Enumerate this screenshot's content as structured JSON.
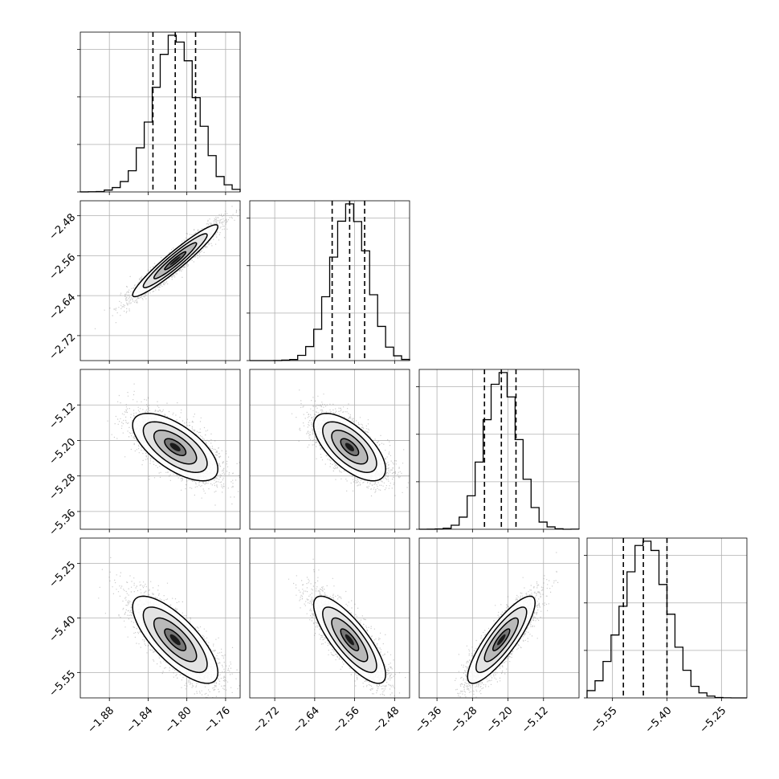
{
  "chart_data": {
    "type": "corner",
    "grid": true,
    "colors": {
      "scatter": "#6e6e6e",
      "contour": "#000000",
      "hist": "#000000",
      "grid": "#b0b0b0"
    },
    "parameters": [
      {
        "mean": -1.812,
        "sd": 0.022,
        "quantiles": [
          -1.835,
          -1.812,
          -1.791
        ],
        "range": [
          -1.91,
          -1.745
        ],
        "ticks": [
          "-1.88",
          "-1.84",
          "-1.80",
          "-1.76"
        ]
      },
      {
        "mean": -2.57,
        "sd": 0.036,
        "quantiles": [
          -2.605,
          -2.57,
          -2.54
        ],
        "range": [
          -2.77,
          -2.45
        ],
        "ticks": [
          "-2.72",
          "-2.64",
          "-2.56",
          "-2.48"
        ]
      },
      {
        "mean": -5.215,
        "sd": 0.038,
        "quantiles": [
          -5.253,
          -5.215,
          -5.182
        ],
        "range": [
          -5.4,
          -5.04
        ],
        "ticks": [
          "-5.36",
          "-5.28",
          "-5.20",
          "-5.12"
        ]
      },
      {
        "mean": -5.46,
        "sd": 0.06,
        "quantiles": [
          -5.52,
          -5.465,
          -5.4
        ],
        "range": [
          -5.62,
          -5.18
        ],
        "ticks": [
          "-5.55",
          "-5.40",
          "-5.25"
        ]
      }
    ],
    "correlations": [
      [
        1,
        0.95,
        -0.65,
        -0.75
      ],
      [
        0.95,
        1,
        -0.65,
        -0.8
      ],
      [
        -0.65,
        -0.65,
        1,
        0.85
      ],
      [
        -0.75,
        -0.8,
        0.85,
        1
      ]
    ]
  }
}
